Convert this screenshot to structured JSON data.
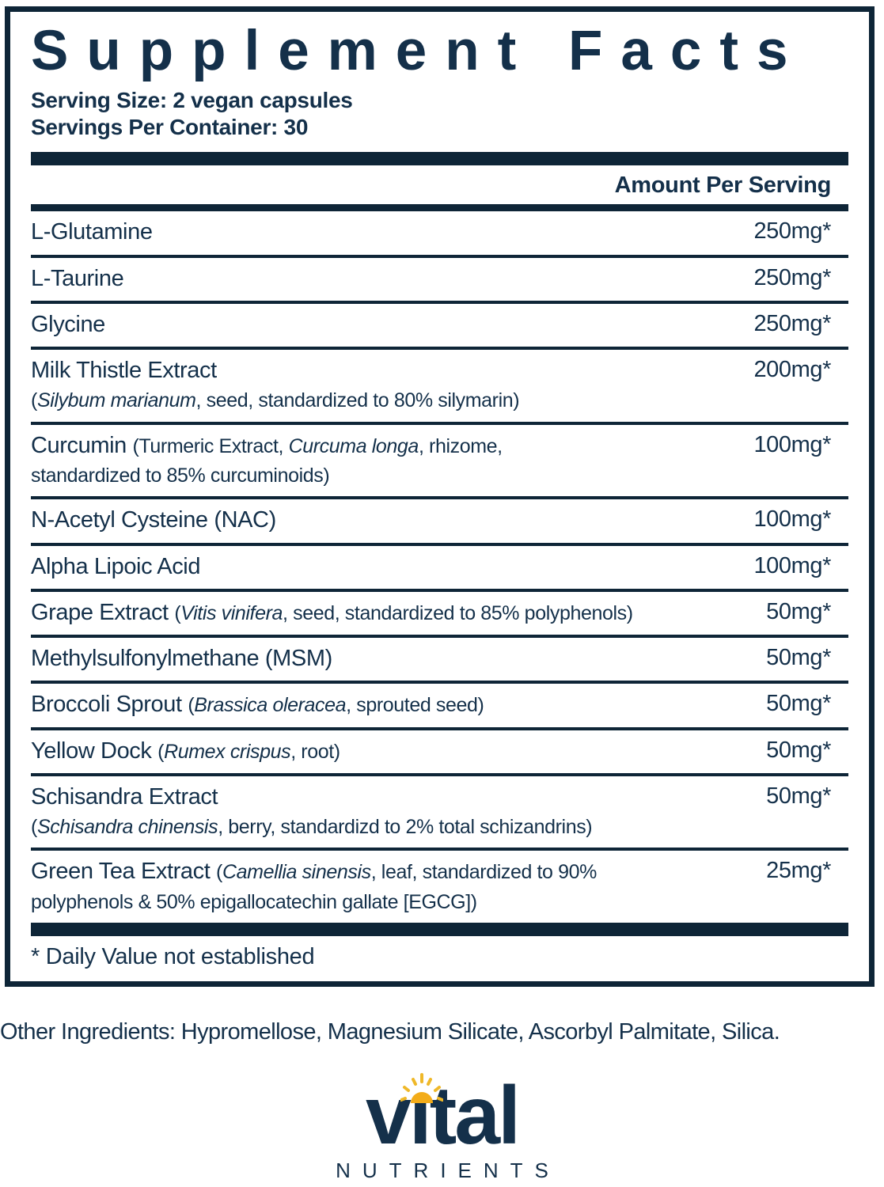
{
  "panel": {
    "title": "Supplement Facts",
    "serving_size": "Serving Size: 2 vegan capsules",
    "servings_per_container": "Servings Per Container: 30",
    "amount_header": "Amount Per Serving",
    "rows": [
      {
        "amount": "250mg*",
        "lines": [
          [
            {
              "t": "L-Glutamine",
              "st": "main"
            }
          ]
        ]
      },
      {
        "amount": "250mg*",
        "lines": [
          [
            {
              "t": "L-Taurine",
              "st": "main"
            }
          ]
        ]
      },
      {
        "amount": "250mg*",
        "lines": [
          [
            {
              "t": "Glycine",
              "st": "main"
            }
          ]
        ]
      },
      {
        "amount": "200mg*",
        "lines": [
          [
            {
              "t": "Milk Thistle Extract",
              "st": "main"
            }
          ],
          [
            {
              "t": "(",
              "st": "sub"
            },
            {
              "t": "Silybum marianum",
              "st": "subi"
            },
            {
              "t": ", seed, standardized to 80% silymarin)",
              "st": "sub"
            }
          ]
        ]
      },
      {
        "amount": "100mg*",
        "lines": [
          [
            {
              "t": "Curcumin ",
              "st": "main"
            },
            {
              "t": "(Turmeric Extract, ",
              "st": "sub"
            },
            {
              "t": "Curcuma longa",
              "st": "subi"
            },
            {
              "t": ", rhizome,",
              "st": "sub"
            }
          ],
          [
            {
              "t": "standardized to 85% curcuminoids)",
              "st": "sub"
            }
          ]
        ]
      },
      {
        "amount": "100mg*",
        "lines": [
          [
            {
              "t": "N-Acetyl Cysteine (NAC)",
              "st": "main"
            }
          ]
        ]
      },
      {
        "amount": "100mg*",
        "lines": [
          [
            {
              "t": "Alpha Lipoic Acid",
              "st": "main"
            }
          ]
        ]
      },
      {
        "amount": "50mg*",
        "lines": [
          [
            {
              "t": "Grape Extract ",
              "st": "main"
            },
            {
              "t": "(",
              "st": "sub"
            },
            {
              "t": "Vitis vinifera",
              "st": "subi"
            },
            {
              "t": ", seed, standardized to 85% polyphenols)",
              "st": "sub"
            }
          ]
        ]
      },
      {
        "amount": "50mg*",
        "lines": [
          [
            {
              "t": "Methylsulfonylmethane (MSM)",
              "st": "main"
            }
          ]
        ]
      },
      {
        "amount": "50mg*",
        "lines": [
          [
            {
              "t": "Broccoli Sprout ",
              "st": "main"
            },
            {
              "t": "(",
              "st": "sub"
            },
            {
              "t": "Brassica oleracea",
              "st": "subi"
            },
            {
              "t": ", sprouted seed)",
              "st": "sub"
            }
          ]
        ]
      },
      {
        "amount": "50mg*",
        "lines": [
          [
            {
              "t": "Yellow Dock ",
              "st": "main"
            },
            {
              "t": "(",
              "st": "sub"
            },
            {
              "t": "Rumex crispus",
              "st": "subi"
            },
            {
              "t": ", root)",
              "st": "sub"
            }
          ]
        ]
      },
      {
        "amount": "50mg*",
        "lines": [
          [
            {
              "t": "Schisandra Extract",
              "st": "main"
            }
          ],
          [
            {
              "t": "(",
              "st": "sub"
            },
            {
              "t": "Schisandra chinensis",
              "st": "subi"
            },
            {
              "t": ", berry, standardizd to 2% total schizandrins)",
              "st": "sub"
            }
          ]
        ]
      },
      {
        "amount": "25mg*",
        "lines": [
          [
            {
              "t": "Green Tea Extract ",
              "st": "main"
            },
            {
              "t": "(",
              "st": "sub"
            },
            {
              "t": "Camellia sinensis",
              "st": "subi"
            },
            {
              "t": ", leaf, standardized to 90%",
              "st": "sub"
            }
          ],
          [
            {
              "t": "polyphenols & 50% epigallocatechin gallate [EGCG])",
              "st": "sub"
            }
          ]
        ]
      }
    ],
    "footnote": "* Daily Value not established"
  },
  "other_ingredients": "Other Ingredients: Hypromellose, Magnesium Silicate, Ascorbyl Palmitate, Silica.",
  "logo": {
    "wordmark": "vital",
    "wordmark_display": "vıtal",
    "tagline": "NUTRIENTS",
    "sun_icon": "sun-icon"
  },
  "colors": {
    "navy": "#0e2537",
    "text": "#14304a",
    "gold": "#f3ac19",
    "gold_light": "#efb829"
  }
}
